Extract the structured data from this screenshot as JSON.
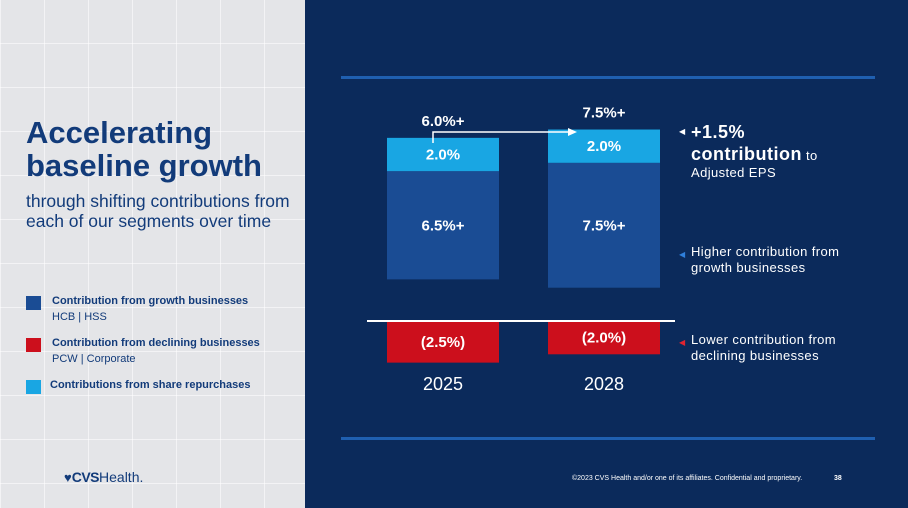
{
  "title": "Accelerating baseline growth",
  "subtitle": "through shifting contributions from each of our segments over time",
  "legend": [
    {
      "label": "Contribution from growth businesses",
      "sub": "HCB | HSS",
      "color": "#1a4c94"
    },
    {
      "label": "Contribution from declining businesses",
      "sub": "PCW | Corporate",
      "color": "#cc0f1c"
    },
    {
      "label": "Contributions from share repurchases",
      "sub": "",
      "color": "#19a6e3"
    }
  ],
  "logo": {
    "heart": "♥",
    "cvs": "CVS",
    "health": "Health."
  },
  "annotations": {
    "total": {
      "headline": "+1.5%",
      "bold": "contribution",
      "rest_a": " to",
      "rest_b": "Adjusted EPS",
      "marker_color": "#ffffff"
    },
    "growth": {
      "text_a": "Higher contribution from",
      "text_b": "growth businesses",
      "marker_color": "#2f7fdb"
    },
    "declining": {
      "text_a": "Lower contribution from",
      "text_b": "declining businesses",
      "marker_color": "#e02430"
    }
  },
  "footer": "©2023 CVS Health and/or one of its affiliates. Confidential and proprietary.",
  "page_number": "38",
  "chart_data": {
    "type": "bar",
    "stacked": true,
    "categories": [
      "2025",
      "2028"
    ],
    "totals": [
      "6.0%+",
      "7.5%+"
    ],
    "series": [
      {
        "name": "Contribution from declining businesses",
        "values": [
          -2.5,
          -2.0
        ],
        "labels": [
          "(2.5%)",
          "(2.0%)"
        ],
        "color": "#cc0f1c"
      },
      {
        "name": "Contribution from growth businesses",
        "values": [
          6.5,
          7.5
        ],
        "labels": [
          "6.5%+",
          "7.5%+"
        ],
        "color": "#1a4c94"
      },
      {
        "name": "Contributions from share repurchases",
        "values": [
          2.0,
          2.0
        ],
        "labels": [
          "2.0%",
          "2.0%"
        ],
        "color": "#19a6e3"
      }
    ]
  }
}
